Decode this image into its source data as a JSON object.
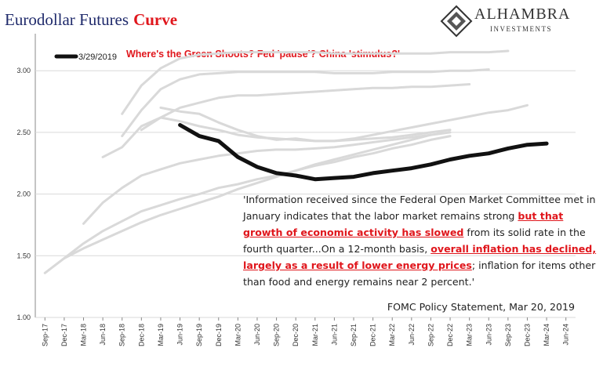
{
  "chart_data": {
    "type": "line",
    "title_parts": [
      "Eurodollar Futures",
      "Curve"
    ],
    "logo": {
      "name": "ALHAMBRA",
      "subtitle": "INVESTMENTS"
    },
    "annotation": "Where's the Green Shoots? Fed 'pause'? China 'stimulus?'",
    "quote": [
      "'Information received since the Federal Open Market Committee met in January indicates that the labor market remains strong ",
      "but that growth of economic activity has slowed",
      " from its solid rate in the fourth quarter...On a 12-month basis, ",
      "overall inflation has declined, largely as a result of lower energy prices",
      "; inflation for items other than food and energy remains near 2 percent.'"
    ],
    "source": "FOMC Policy Statement,  Mar 20, 2019",
    "categories": [
      "Sep-17",
      "Dec-17",
      "Mar-18",
      "Jun-18",
      "Sep-18",
      "Dec-18",
      "Mar-19",
      "Jun-19",
      "Sep-19",
      "Dec-19",
      "Mar-20",
      "Jun-20",
      "Sep-20",
      "Dec-20",
      "Mar-21",
      "Jun-21",
      "Sep-21",
      "Dec-21",
      "Mar-22",
      "Jun-22",
      "Sep-22",
      "Dec-22",
      "Mar-23",
      "Jun-23",
      "Sep-23",
      "Dec-23",
      "Mar-24",
      "Jun-24"
    ],
    "ylim": [
      1.0,
      3.3
    ],
    "yticks": [
      {
        "value": 1,
        "label": "1.00"
      },
      {
        "value": 1.5,
        "label": "1.50"
      },
      {
        "value": 2,
        "label": "2.00"
      },
      {
        "value": 2.5,
        "label": "2.50"
      },
      {
        "value": 3,
        "label": "3.00"
      }
    ],
    "grid": true,
    "series": [
      {
        "color": "#d9d9d9",
        "values": [
          null,
          null,
          null,
          null,
          2.65,
          2.88,
          3.02,
          3.1,
          3.13,
          3.14,
          3.15,
          3.15,
          3.15,
          3.15,
          3.15,
          3.14,
          3.14,
          3.14,
          3.14,
          3.14,
          3.14,
          3.15,
          3.15,
          3.15,
          3.16,
          null,
          null,
          null
        ]
      },
      {
        "color": "#d9d9d9",
        "values": [
          null,
          null,
          null,
          null,
          2.47,
          2.68,
          2.85,
          2.93,
          2.97,
          2.98,
          2.99,
          2.99,
          2.99,
          2.99,
          2.99,
          2.98,
          2.98,
          2.98,
          2.99,
          2.99,
          2.99,
          3.0,
          3.0,
          3.01,
          null,
          null,
          null,
          null
        ]
      },
      {
        "color": "#d9d9d9",
        "values": [
          null,
          null,
          null,
          null,
          null,
          2.52,
          2.62,
          2.7,
          2.74,
          2.78,
          2.8,
          2.8,
          2.81,
          2.82,
          2.83,
          2.84,
          2.85,
          2.86,
          2.86,
          2.87,
          2.87,
          2.88,
          2.89,
          null,
          null,
          null,
          null,
          null
        ]
      },
      {
        "color": "#d9d9d9",
        "values": [
          null,
          null,
          null,
          null,
          null,
          null,
          2.7,
          2.67,
          2.65,
          2.58,
          2.52,
          2.47,
          2.44,
          2.45,
          2.43,
          2.43,
          2.45,
          2.48,
          2.51,
          2.54,
          2.57,
          2.6,
          2.63,
          2.66,
          2.68,
          2.72,
          null,
          null
        ]
      },
      {
        "color": "#d9d9d9",
        "values": [
          null,
          null,
          null,
          2.3,
          2.38,
          2.55,
          2.62,
          2.59,
          2.55,
          2.52,
          2.48,
          2.46,
          2.45,
          2.44,
          2.43,
          2.43,
          2.44,
          2.45,
          2.46,
          2.48,
          2.5,
          2.52,
          null,
          null,
          null,
          null,
          null,
          null
        ]
      },
      {
        "color": "#d9d9d9",
        "values": [
          null,
          null,
          1.76,
          1.93,
          2.05,
          2.15,
          2.2,
          2.25,
          2.28,
          2.31,
          2.33,
          2.35,
          2.36,
          2.36,
          2.37,
          2.38,
          2.4,
          2.42,
          2.44,
          2.46,
          2.48,
          2.5,
          null,
          null,
          null,
          null,
          null,
          null
        ]
      },
      {
        "color": "#d9d9d9",
        "values": [
          1.36,
          1.48,
          1.56,
          1.63,
          1.7,
          1.77,
          1.83,
          1.88,
          1.93,
          1.98,
          2.04,
          2.09,
          2.14,
          2.19,
          2.24,
          2.28,
          2.32,
          2.36,
          2.4,
          2.44,
          2.48,
          null,
          null,
          null,
          null,
          null,
          null,
          null
        ]
      },
      {
        "color": "#d9d9d9",
        "values": [
          null,
          1.48,
          1.6,
          1.7,
          1.78,
          1.86,
          1.91,
          1.96,
          2.0,
          2.05,
          2.08,
          2.12,
          2.15,
          2.19,
          2.23,
          2.26,
          2.3,
          2.33,
          2.37,
          2.4,
          2.44,
          2.47,
          null,
          null,
          null,
          null,
          null,
          null
        ]
      },
      {
        "name": "3/29/2019",
        "color": "#111111",
        "values": [
          null,
          null,
          null,
          null,
          null,
          null,
          null,
          2.56,
          2.47,
          2.43,
          2.3,
          2.22,
          2.17,
          2.15,
          2.12,
          2.13,
          2.14,
          2.17,
          2.19,
          2.21,
          2.24,
          2.28,
          2.31,
          2.33,
          2.37,
          2.4,
          2.41,
          null
        ]
      }
    ]
  }
}
